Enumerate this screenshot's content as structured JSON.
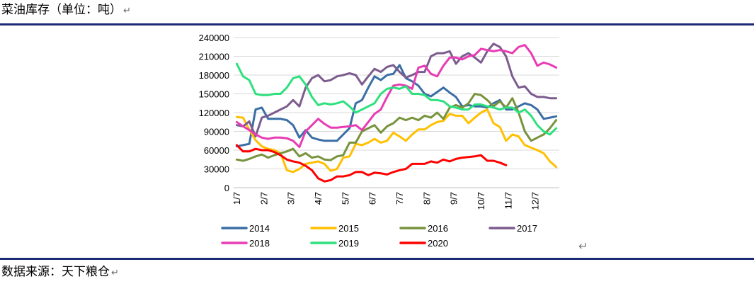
{
  "header": {
    "title": "菜油库存（单位：吨）"
  },
  "footer": {
    "source": "数据来源：天下粮仓"
  },
  "chart_data": {
    "type": "line",
    "title": "",
    "xlabel": "",
    "ylabel": "",
    "ylim": [
      0,
      240000
    ],
    "yticks": [
      "0",
      "30000",
      "60000",
      "90000",
      "120000",
      "150000",
      "180000",
      "210000",
      "240000"
    ],
    "xticks": [
      "1/7",
      "2/7",
      "3/7",
      "4/7",
      "5/7",
      "6/7",
      "7/7",
      "8/7",
      "9/7",
      "10/7",
      "11/7",
      "12/7"
    ],
    "x_period_count": 52,
    "legend_position": "bottom",
    "grid": "horizontal",
    "series": [
      {
        "name": "2014",
        "color": "#3a6ea5",
        "values": [
          66000,
          68000,
          70000,
          125000,
          128000,
          110000,
          110000,
          110000,
          108000,
          100000,
          80000,
          92000,
          80000,
          77000,
          75000,
          75000,
          75000,
          85000,
          95000,
          135000,
          140000,
          160000,
          178000,
          172000,
          180000,
          182000,
          196000,
          175000,
          170000,
          163000,
          150000,
          146000,
          153000,
          160000,
          152000,
          145000,
          130000,
          132000,
          130000,
          130000,
          128000,
          135000,
          140000,
          125000,
          125000,
          130000,
          135000,
          132000,
          125000,
          110000,
          112000,
          114000
        ]
      },
      {
        "name": "2015",
        "color": "#ffc000",
        "values": [
          113000,
          112000,
          93000,
          76000,
          66000,
          62000,
          60000,
          55000,
          28000,
          25000,
          30000,
          38000,
          40000,
          42000,
          38000,
          27000,
          30000,
          48000,
          50000,
          70000,
          68000,
          72000,
          78000,
          72000,
          75000,
          88000,
          82000,
          75000,
          85000,
          93000,
          93000,
          100000,
          105000,
          107000,
          118000,
          115000,
          115000,
          103000,
          112000,
          120000,
          125000,
          103000,
          97000,
          75000,
          85000,
          82000,
          68000,
          64000,
          60000,
          55000,
          42000,
          33000
        ]
      },
      {
        "name": "2016",
        "color": "#77933c",
        "values": [
          45000,
          43000,
          46000,
          50000,
          53000,
          48000,
          52000,
          55000,
          58000,
          62000,
          50000,
          55000,
          48000,
          50000,
          45000,
          44000,
          50000,
          52000,
          72000,
          72000,
          90000,
          95000,
          100000,
          88000,
          98000,
          103000,
          112000,
          108000,
          112000,
          108000,
          115000,
          112000,
          120000,
          110000,
          128000,
          132000,
          128000,
          135000,
          150000,
          148000,
          140000,
          130000,
          138000,
          128000,
          143000,
          120000,
          90000,
          75000,
          80000,
          85000,
          95000,
          108000
        ]
      },
      {
        "name": "2017",
        "color": "#7c5c8e",
        "values": [
          100000,
          98000,
          106000,
          82000,
          112000,
          115000,
          120000,
          125000,
          130000,
          140000,
          130000,
          160000,
          175000,
          180000,
          170000,
          172000,
          178000,
          180000,
          183000,
          180000,
          165000,
          178000,
          190000,
          185000,
          193000,
          196000,
          185000,
          176000,
          180000,
          185000,
          185000,
          210000,
          215000,
          215000,
          218000,
          198000,
          210000,
          215000,
          208000,
          200000,
          218000,
          230000,
          225000,
          210000,
          178000,
          160000,
          162000,
          150000,
          145000,
          145000,
          143000,
          143000
        ]
      },
      {
        "name": "2018",
        "color": "#e83cb4",
        "values": [
          105000,
          98000,
          92000,
          85000,
          80000,
          78000,
          80000,
          80000,
          79000,
          75000,
          65000,
          90000,
          100000,
          110000,
          102000,
          96000,
          96000,
          97000,
          98000,
          100000,
          92000,
          105000,
          118000,
          125000,
          145000,
          163000,
          165000,
          163000,
          158000,
          192000,
          195000,
          182000,
          178000,
          195000,
          208000,
          208000,
          205000,
          210000,
          212000,
          222000,
          220000,
          218000,
          220000,
          218000,
          215000,
          225000,
          228000,
          215000,
          195000,
          200000,
          197000,
          192000
        ]
      },
      {
        "name": "2019",
        "color": "#2ee07e",
        "values": [
          198000,
          178000,
          172000,
          150000,
          148000,
          148000,
          150000,
          150000,
          160000,
          175000,
          178000,
          165000,
          145000,
          132000,
          135000,
          133000,
          135000,
          138000,
          130000,
          120000,
          125000,
          130000,
          135000,
          150000,
          158000,
          160000,
          158000,
          162000,
          150000,
          150000,
          148000,
          140000,
          140000,
          138000,
          130000,
          128000,
          125000,
          125000,
          133000,
          133000,
          130000,
          128000,
          125000,
          128000,
          128000,
          120000,
          125000,
          115000,
          100000,
          90000,
          85000,
          95000
        ]
      },
      {
        "name": "2020",
        "color": "#ff0000",
        "values": [
          68000,
          58000,
          58000,
          62000,
          60000,
          60000,
          57000,
          52000,
          45000,
          42000,
          40000,
          35000,
          28000,
          15000,
          10000,
          12000,
          18000,
          18000,
          20000,
          25000,
          25000,
          20000,
          24000,
          23000,
          21000,
          25000,
          28000,
          30000,
          38000,
          38000,
          38000,
          42000,
          40000,
          45000,
          42000,
          46000,
          48000,
          49000,
          50000,
          52000,
          43000,
          43000,
          40000,
          36000
        ]
      }
    ]
  }
}
